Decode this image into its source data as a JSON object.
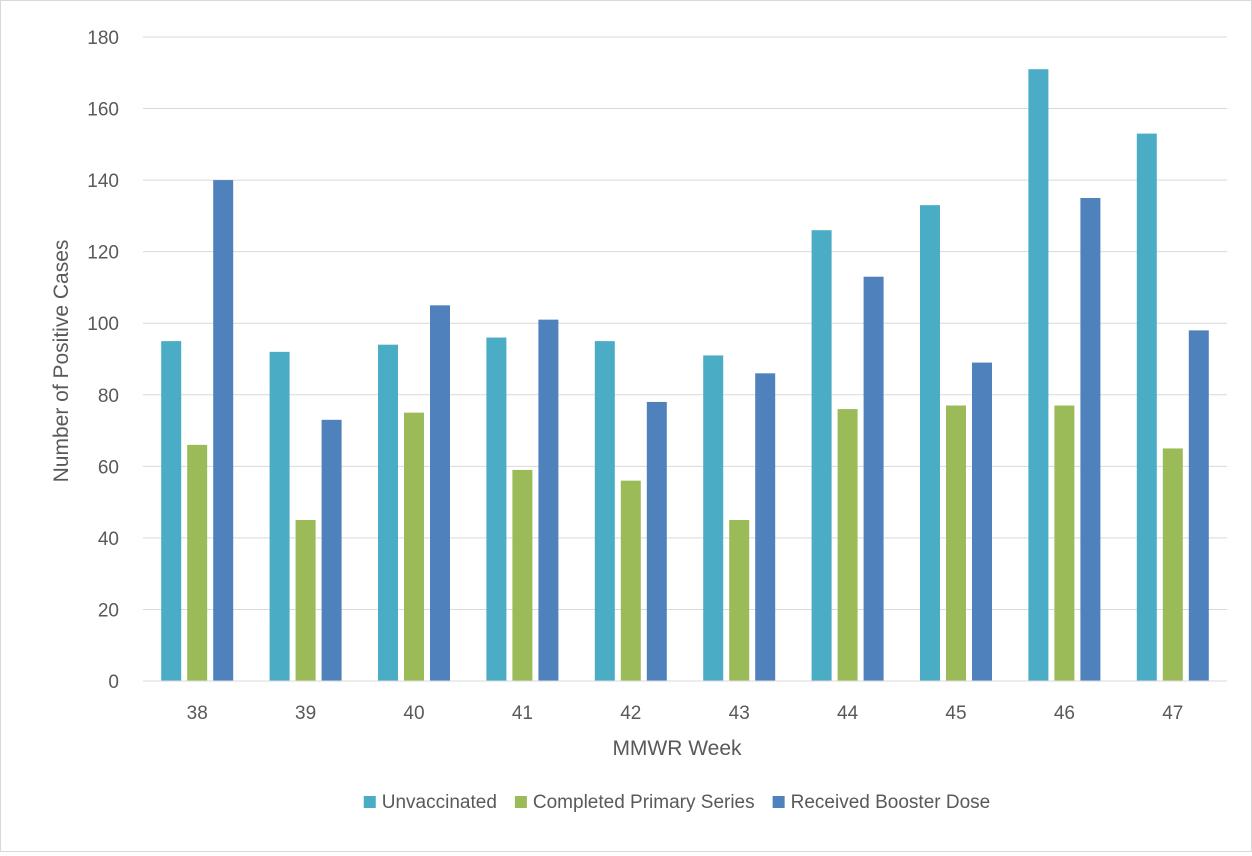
{
  "chart_data": {
    "type": "bar",
    "title": "",
    "xlabel": "MMWR Week",
    "ylabel": "Number of Positive Cases",
    "categories": [
      "38",
      "39",
      "40",
      "41",
      "42",
      "43",
      "44",
      "45",
      "46",
      "47"
    ],
    "ylim": [
      0,
      180
    ],
    "yticks": [
      0,
      20,
      40,
      60,
      80,
      100,
      120,
      140,
      160,
      180
    ],
    "grid": true,
    "legend_position": "bottom",
    "series": [
      {
        "name": "Unvaccinated",
        "color": "#4bacc6",
        "values": [
          95,
          92,
          94,
          96,
          95,
          91,
          126,
          133,
          171,
          153
        ]
      },
      {
        "name": "Completed Primary Series",
        "color": "#9bbb59",
        "values": [
          66,
          45,
          75,
          59,
          56,
          45,
          76,
          77,
          77,
          65
        ]
      },
      {
        "name": "Received Booster Dose",
        "color": "#4f81bd",
        "values": [
          140,
          73,
          105,
          101,
          78,
          86,
          113,
          89,
          135,
          98
        ]
      }
    ]
  }
}
